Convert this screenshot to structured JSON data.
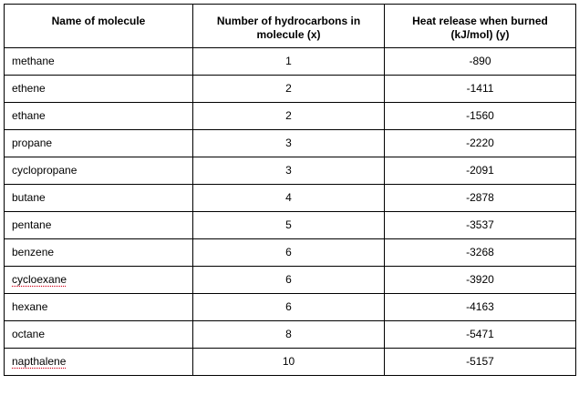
{
  "table": {
    "headers": [
      "Name of molecule",
      "Number of hydrocarbons in molecule (x)",
      "Heat release when burned (kJ/mol) (y)"
    ],
    "rows": [
      {
        "name": "methane",
        "x": "1",
        "y": "-890"
      },
      {
        "name": "ethene",
        "x": "2",
        "y": "-1411"
      },
      {
        "name": "ethane",
        "x": "2",
        "y": "-1560"
      },
      {
        "name": "propane",
        "x": "3",
        "y": "-2220"
      },
      {
        "name": "cyclopropane",
        "x": "3",
        "y": "-2091"
      },
      {
        "name": "butane",
        "x": "4",
        "y": "-2878"
      },
      {
        "name": "pentane",
        "x": "5",
        "y": "-3537"
      },
      {
        "name": "benzene",
        "x": "6",
        "y": "-3268"
      },
      {
        "name": "cycloexane",
        "x": "6",
        "y": "-3920"
      },
      {
        "name": "hexane",
        "x": "6",
        "y": "-4163"
      },
      {
        "name": "octane",
        "x": "8",
        "y": "-5471"
      },
      {
        "name": "napthalene",
        "x": "10",
        "y": "-5157"
      }
    ]
  },
  "colors": {
    "border": "#000000",
    "spellcheck_underline": "#d0021b"
  }
}
